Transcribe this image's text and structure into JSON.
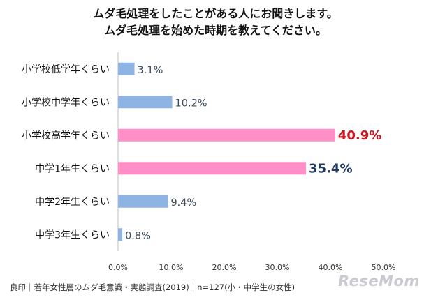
{
  "title_line1": "ムダ毛処理をしたことがある人にお聞きします。",
  "title_line2": "ムダ毛処理を始めた時期を教えてください。",
  "footer": "良印｜若年女性層のムダ毛意識・実態調査(2019)｜n=127(小・中学生の女性)",
  "logo": "ReseMom",
  "colors": {
    "blue": "#8eb4e3",
    "pink": "#ff8fc6",
    "highlight_red": "#d0121b",
    "highlight_navy": "#1f3a5c",
    "label_gray": "#3a4a5a"
  },
  "chart_data": {
    "type": "bar",
    "orientation": "horizontal",
    "categories": [
      "小学校低学年くらい",
      "小学校中学年くらい",
      "小学校高学年くらい",
      "中学1年生くらい",
      "中学2年生くらい",
      "中学3年生くらい"
    ],
    "values": [
      3.1,
      10.2,
      40.9,
      35.4,
      9.4,
      0.8
    ],
    "value_labels": [
      "3.1%",
      "10.2%",
      "40.9%",
      "35.4%",
      "9.4%",
      "0.8%"
    ],
    "highlight": [
      false,
      false,
      true,
      true,
      false,
      false
    ],
    "xlim": [
      0,
      50
    ],
    "xticks": [
      "0.0%",
      "10.0%",
      "20.0%",
      "30.0%",
      "40.0%",
      "50.0%"
    ],
    "grid": false
  }
}
